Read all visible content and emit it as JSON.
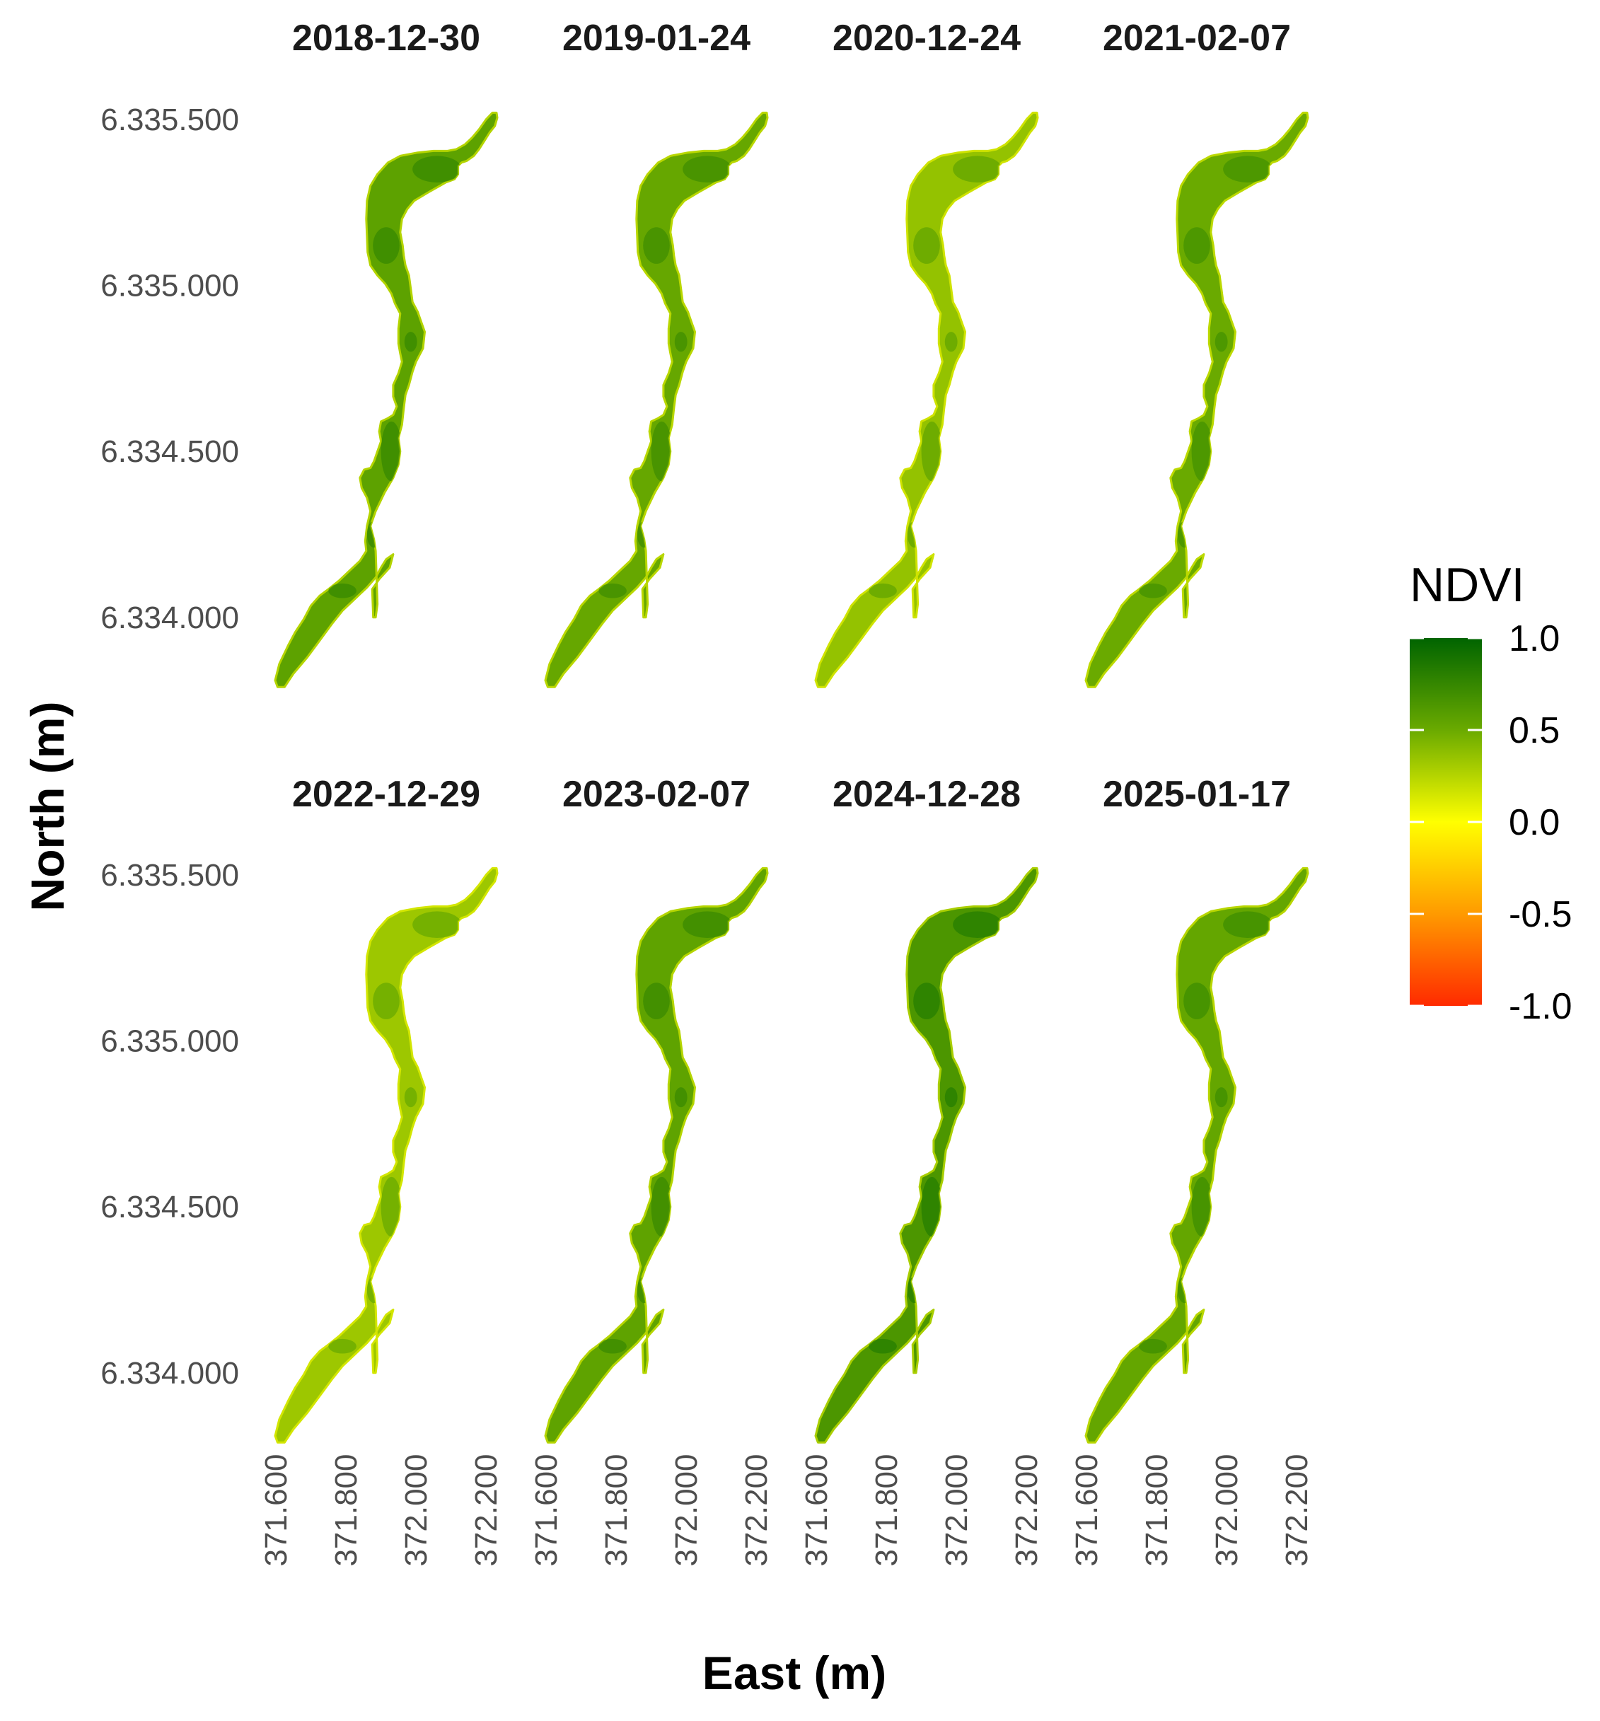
{
  "chart_data": {
    "type": "faceted-raster-map",
    "variable": "NDVI",
    "panels": [
      {
        "date": "2018-12-30",
        "greenness": 0.56
      },
      {
        "date": "2019-01-24",
        "greenness": 0.52
      },
      {
        "date": "2020-12-24",
        "greenness": 0.36
      },
      {
        "date": "2021-02-07",
        "greenness": 0.5
      },
      {
        "date": "2022-12-29",
        "greenness": 0.33
      },
      {
        "date": "2023-02-07",
        "greenness": 0.55
      },
      {
        "date": "2024-12-28",
        "greenness": 0.64
      },
      {
        "date": "2025-01-17",
        "greenness": 0.53
      }
    ],
    "x_axis": {
      "label": "East (m)",
      "ticks": [
        371600,
        371800,
        372000,
        372200
      ],
      "tick_labels": [
        "371.600",
        "371.800",
        "372.000",
        "372.200"
      ],
      "range": [
        371590,
        372240
      ]
    },
    "y_axis": {
      "label": "North (m)",
      "ticks": [
        6334000,
        6334500,
        6335000,
        6335500
      ],
      "tick_labels": [
        "6.334.000",
        "6.334.500",
        "6.335.000",
        "6.335.500"
      ],
      "range": [
        6333780,
        6335540
      ]
    },
    "legend": {
      "title": "NDVI",
      "placement": "right",
      "range": [
        -1.0,
        1.0
      ],
      "ticks": [
        1.0,
        0.5,
        0.0,
        -0.5,
        -1.0
      ],
      "tick_labels": [
        "1.0",
        "0.5",
        "0.0",
        "-0.5",
        "-1.0"
      ],
      "colors": [
        {
          "value": -1.0,
          "color": "#ff2a00"
        },
        {
          "value": -0.5,
          "color": "#ff9a00"
        },
        {
          "value": 0.0,
          "color": "#ffff00"
        },
        {
          "value": 0.5,
          "color": "#6aaa00"
        },
        {
          "value": 1.0,
          "color": "#006400"
        }
      ]
    },
    "grid": false,
    "layout": {
      "rows": 2,
      "columns": 4
    }
  }
}
